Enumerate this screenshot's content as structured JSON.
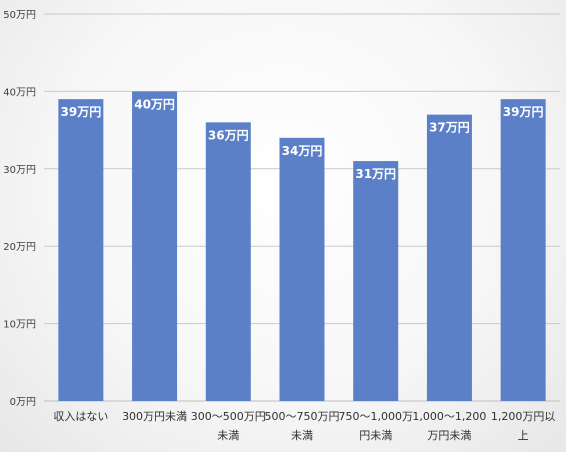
{
  "chart_data": {
    "type": "bar",
    "categories": [
      [
        "収入はない"
      ],
      [
        "300万円未満"
      ],
      [
        "300～500万円",
        "未満"
      ],
      [
        "500～750万円",
        "未満"
      ],
      [
        "750～1,000万",
        "円未満"
      ],
      [
        "1,000～1,200",
        "万円未満"
      ],
      [
        "1,200万円以",
        "上"
      ]
    ],
    "values": [
      39,
      40,
      36,
      34,
      31,
      37,
      39
    ],
    "data_labels": [
      "39万円",
      "40万円",
      "36万円",
      "34万円",
      "31万円",
      "37万円",
      "39万円"
    ],
    "y_ticks": [
      0,
      10,
      20,
      30,
      40,
      50
    ],
    "y_tick_labels": [
      "0万円",
      "10万円",
      "20万円",
      "30万円",
      "40万円",
      "50万円"
    ],
    "ylim": [
      0,
      50
    ],
    "grid": true,
    "legend": "none",
    "colors": {
      "bar": "#5b80c8",
      "grid": "#c9c9c9",
      "axis": "#bfbfbf"
    }
  }
}
